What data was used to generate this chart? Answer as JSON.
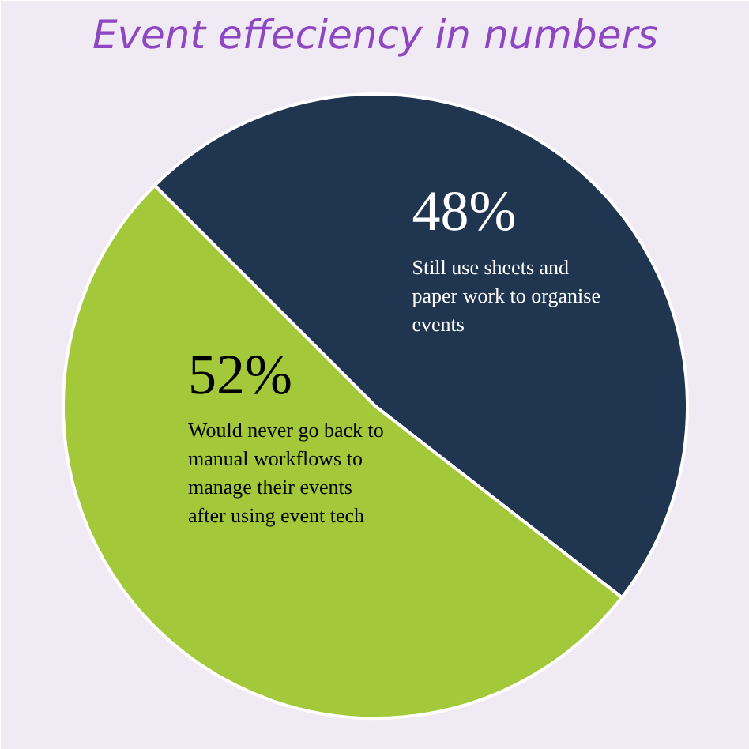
{
  "chart_data": {
    "type": "pie",
    "title": "Event effeciency in numbers",
    "categories": [
      "Still use sheets and paper work to organise events",
      "Would never go back to manual workflows to manage their events after using event tech"
    ],
    "values": [
      48,
      52
    ],
    "colors": [
      "#1f3550",
      "#a3c93a"
    ],
    "value_labels": [
      "48%",
      "52%"
    ],
    "legend": false
  }
}
